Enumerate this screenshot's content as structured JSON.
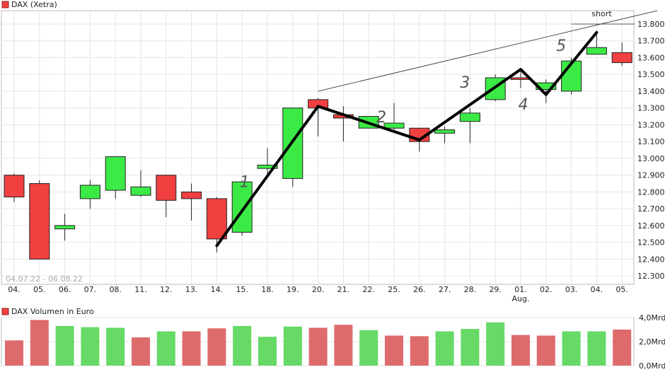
{
  "chart_data": [
    {
      "type": "candlestick",
      "title": "DAX (Xetra)",
      "date_range": "04.07.22 - 06.08.22",
      "categories": [
        "04.",
        "05.",
        "06.",
        "07.",
        "08.",
        "11.",
        "12.",
        "13.",
        "14.",
        "15.",
        "18.",
        "19.",
        "20.",
        "21.",
        "22.",
        "25.",
        "26.",
        "27.",
        "28.",
        "29.",
        "01.",
        "02.",
        "03.",
        "04.",
        "05."
      ],
      "month_label": {
        "index": 20,
        "text": "Aug."
      },
      "ylim": [
        12250,
        13880
      ],
      "yticks": [
        12300,
        12400,
        12500,
        12600,
        12700,
        12800,
        12900,
        13000,
        13100,
        13200,
        13300,
        13400,
        13500,
        13600,
        13700,
        13800
      ],
      "ytick_labels": [
        "12.300",
        "12.400",
        "12.500",
        "12.600",
        "12.700",
        "12.800",
        "12.900",
        "13.000",
        "13.100",
        "13.200",
        "13.300",
        "13.400",
        "13.500",
        "13.600",
        "13.700",
        "13.800"
      ],
      "grid": true,
      "series": [
        {
          "open": 12900,
          "high": 12910,
          "low": 12740,
          "close": 12770
        },
        {
          "open": 12850,
          "high": 12870,
          "low": 12400,
          "close": 12400
        },
        {
          "open": 12580,
          "high": 12670,
          "low": 12510,
          "close": 12600
        },
        {
          "open": 12760,
          "high": 12870,
          "low": 12700,
          "close": 12840
        },
        {
          "open": 12810,
          "high": 13010,
          "low": 12760,
          "close": 13010
        },
        {
          "open": 12780,
          "high": 12930,
          "low": 12770,
          "close": 12830
        },
        {
          "open": 12900,
          "high": 12900,
          "low": 12650,
          "close": 12750
        },
        {
          "open": 12800,
          "high": 12850,
          "low": 12630,
          "close": 12760
        },
        {
          "open": 12760,
          "high": 12770,
          "low": 12440,
          "close": 12520
        },
        {
          "open": 12560,
          "high": 12870,
          "low": 12540,
          "close": 12860
        },
        {
          "open": 12940,
          "high": 13060,
          "low": 12900,
          "close": 12960
        },
        {
          "open": 12880,
          "high": 13300,
          "low": 12830,
          "close": 13300
        },
        {
          "open": 13350,
          "high": 13360,
          "low": 13130,
          "close": 13300
        },
        {
          "open": 13260,
          "high": 13310,
          "low": 13100,
          "close": 13240
        },
        {
          "open": 13180,
          "high": 13250,
          "low": 13180,
          "close": 13250
        },
        {
          "open": 13180,
          "high": 13330,
          "low": 13170,
          "close": 13210
        },
        {
          "open": 13180,
          "high": 13180,
          "low": 13040,
          "close": 13100
        },
        {
          "open": 13150,
          "high": 13190,
          "low": 13090,
          "close": 13170
        },
        {
          "open": 13220,
          "high": 13300,
          "low": 13090,
          "close": 13270
        },
        {
          "open": 13350,
          "high": 13500,
          "low": 13340,
          "close": 13480
        },
        {
          "open": 13480,
          "high": 13530,
          "low": 13420,
          "close": 13470
        },
        {
          "open": 13410,
          "high": 13470,
          "low": 13330,
          "close": 13450
        },
        {
          "open": 13400,
          "high": 13600,
          "low": 13380,
          "close": 13580
        },
        {
          "open": 13620,
          "high": 13760,
          "low": 13620,
          "close": 13660
        },
        {
          "open": 13630,
          "high": 13690,
          "low": 13550,
          "close": 13570
        }
      ]
    },
    {
      "type": "bar",
      "title": "DAX Volumen in Euro",
      "categories": [
        "04.",
        "05.",
        "06.",
        "07.",
        "08.",
        "11.",
        "12.",
        "13.",
        "14.",
        "15.",
        "18.",
        "19.",
        "20.",
        "21.",
        "22.",
        "25.",
        "26.",
        "27.",
        "28.",
        "29.",
        "01.",
        "02.",
        "03.",
        "04.",
        "05."
      ],
      "values": [
        2.1,
        3.8,
        3.3,
        3.2,
        3.15,
        2.35,
        2.85,
        2.85,
        3.1,
        3.3,
        2.4,
        3.25,
        3.15,
        3.4,
        2.95,
        2.5,
        2.45,
        2.85,
        3.05,
        3.6,
        2.55,
        2.5,
        2.85,
        2.85,
        3.0
      ],
      "colors": [
        "red",
        "red",
        "green",
        "green",
        "green",
        "red",
        "green",
        "red",
        "red",
        "green",
        "green",
        "green",
        "red",
        "red",
        "green",
        "red",
        "red",
        "green",
        "green",
        "green",
        "red",
        "red",
        "green",
        "green",
        "red"
      ],
      "unit": "Mrd",
      "ylim": [
        0,
        4.0
      ],
      "ytick_labels": [
        "0,0Mrd",
        "2,0Mrd",
        "4,0Mrd"
      ],
      "ytick_values": [
        0,
        2,
        4
      ]
    }
  ],
  "annotations": {
    "short_label": "short",
    "wave_labels": [
      "1",
      "2",
      "3",
      "4",
      "5"
    ],
    "wave_points": [
      {
        "index": 8,
        "value": 12480
      },
      {
        "index": 12,
        "value": 13310
      },
      {
        "index": 16,
        "value": 13110
      },
      {
        "index": 20,
        "value": 13530
      },
      {
        "index": 21,
        "value": 13380
      },
      {
        "index": 23,
        "value": 13750
      }
    ],
    "trendline": [
      {
        "index": 12,
        "value": 13400
      },
      {
        "index": 25.4,
        "value": 13880
      }
    ],
    "horizontal_line": {
      "from_index": 22,
      "to_index": 24.5,
      "value": 13800
    }
  },
  "colors": {
    "up": "#3cea46",
    "down": "#f04040",
    "vol_up": "#66d966",
    "vol_down": "#de6b6b"
  }
}
